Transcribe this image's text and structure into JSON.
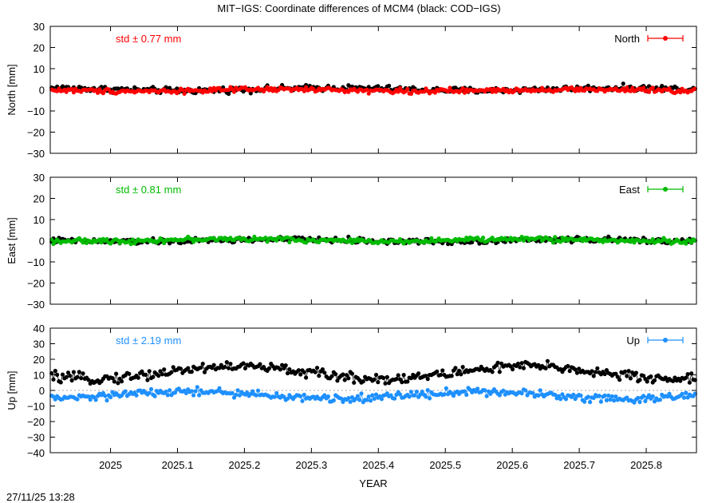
{
  "figure": {
    "title": "MIT−IGS: Coordinate differences of MCM4 (black: COD−IGS)",
    "timestamp": "27/11/25 13:28",
    "xlabel": "YEAR",
    "zero_line": true
  },
  "chart_data": [
    {
      "type": "scatter",
      "panel": "north",
      "ylabel": "North [mm]",
      "ylim": [
        -30,
        30
      ],
      "yticks": [
        -30,
        -20,
        -10,
        0,
        10,
        20,
        30
      ],
      "xlim": [
        2024.91,
        2025.875
      ],
      "xticks": [
        2025,
        2025.1,
        2025.2,
        2025.3,
        2025.4,
        2025.5,
        2025.6,
        2025.7,
        2025.8
      ],
      "std_label": "std ± 0.77 mm",
      "color": "#ff0000",
      "legend": {
        "label": "North",
        "position": "top-right"
      },
      "series": [
        {
          "name": "COD−IGS",
          "color": "#000000",
          "mean": 0.3,
          "spread": 1.0,
          "wave": 0.6
        },
        {
          "name": "North",
          "color": "#ff0000",
          "mean": -0.2,
          "spread": 0.8,
          "wave": 0.4
        }
      ]
    },
    {
      "type": "scatter",
      "panel": "east",
      "ylabel": "East [mm]",
      "ylim": [
        -30,
        30
      ],
      "yticks": [
        -30,
        -20,
        -10,
        0,
        10,
        20,
        30
      ],
      "xlim": [
        2024.91,
        2025.875
      ],
      "xticks": [
        2025,
        2025.1,
        2025.2,
        2025.3,
        2025.4,
        2025.5,
        2025.6,
        2025.7,
        2025.8
      ],
      "std_label": "std ± 0.81 mm",
      "color": "#00bb00",
      "legend": {
        "label": "East",
        "position": "top-right"
      },
      "series": [
        {
          "name": "COD−IGS",
          "color": "#000000",
          "mean": 0.1,
          "spread": 0.9,
          "wave": 0.5
        },
        {
          "name": "East",
          "color": "#00bb00",
          "mean": 0.3,
          "spread": 0.8,
          "wave": 0.5
        }
      ]
    },
    {
      "type": "scatter",
      "panel": "up",
      "ylabel": "Up [mm]",
      "ylim": [
        -40,
        40
      ],
      "yticks": [
        -40,
        -30,
        -20,
        -10,
        0,
        10,
        20,
        30,
        40
      ],
      "xlim": [
        2024.91,
        2025.875
      ],
      "xticks": [
        2025,
        2025.1,
        2025.2,
        2025.3,
        2025.4,
        2025.5,
        2025.6,
        2025.7,
        2025.8
      ],
      "std_label": "std ± 2.19 mm",
      "color": "#1e90ff",
      "legend": {
        "label": "Up",
        "position": "top-right"
      },
      "series": [
        {
          "name": "COD−IGS",
          "color": "#000000",
          "mean": 11.5,
          "spread": 2.3,
          "wave": 4.0
        },
        {
          "name": "Up",
          "color": "#1e90ff",
          "mean": -3.0,
          "spread": 1.8,
          "wave": 2.2
        }
      ]
    }
  ]
}
